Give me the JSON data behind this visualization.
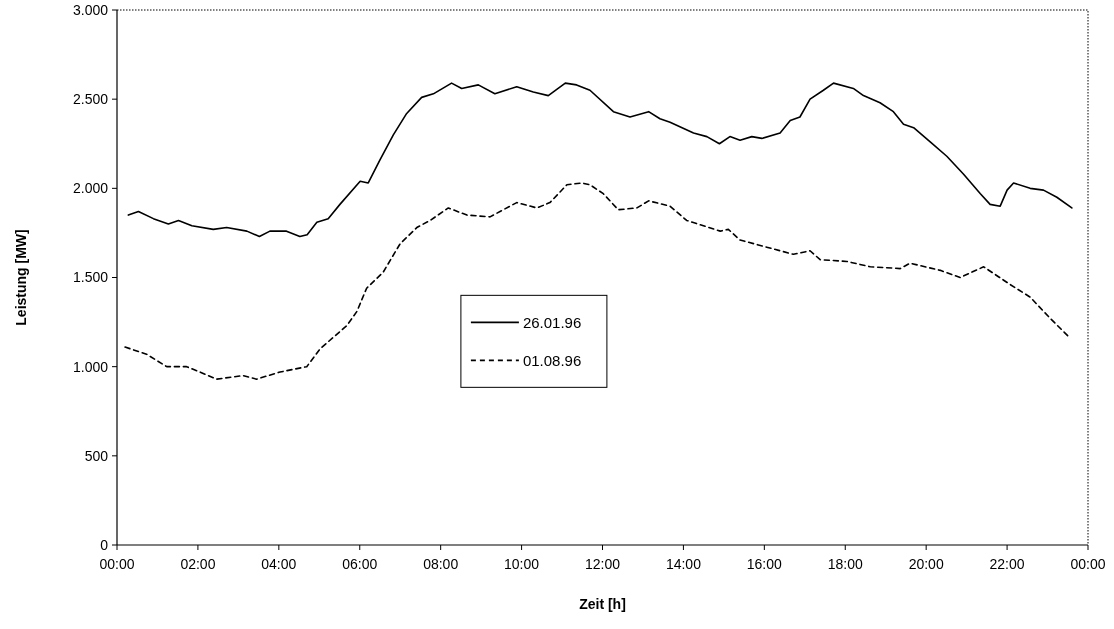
{
  "chart_data": {
    "type": "line",
    "xlabel": "Zeit [h]",
    "ylabel": "Leistung [MW]",
    "xlim": [
      0,
      24
    ],
    "xticks": [
      {
        "value": 0,
        "label": "00:00"
      },
      {
        "value": 2,
        "label": "02:00"
      },
      {
        "value": 4,
        "label": "04:00"
      },
      {
        "value": 6,
        "label": "06:00"
      },
      {
        "value": 8,
        "label": "08:00"
      },
      {
        "value": 10,
        "label": "10:00"
      },
      {
        "value": 12,
        "label": "12:00"
      },
      {
        "value": 14,
        "label": "14:00"
      },
      {
        "value": 16,
        "label": "16:00"
      },
      {
        "value": 18,
        "label": "18:00"
      },
      {
        "value": 20,
        "label": "20:00"
      },
      {
        "value": 22,
        "label": "22:00"
      },
      {
        "value": 24,
        "label": "00:00"
      }
    ],
    "ylim": [
      0,
      3000
    ],
    "yticks": [
      0,
      500,
      {
        "value": 1000,
        "label": "1.000"
      },
      {
        "value": 1500,
        "label": "1.500"
      },
      {
        "value": 2000,
        "label": "2.000"
      },
      {
        "value": 2500,
        "label": "2.500"
      },
      {
        "value": 3000,
        "label": "3.000"
      }
    ],
    "grid": false,
    "legend": "center left",
    "series": [
      {
        "name": "26.01.96",
        "color": "#000000",
        "line_style": "solid",
        "x": [
          0.28,
          0.53,
          0.9,
          1.27,
          1.52,
          1.85,
          2.38,
          2.71,
          3.21,
          3.52,
          3.78,
          4.19,
          4.52,
          4.7,
          4.94,
          5.22,
          5.51,
          6.01,
          6.21,
          6.5,
          6.83,
          7.16,
          7.53,
          7.82,
          8.27,
          8.52,
          8.93,
          9.34,
          9.88,
          10.29,
          10.66,
          11.08,
          11.36,
          11.69,
          12.27,
          12.68,
          13.14,
          13.42,
          13.67,
          14.25,
          14.58,
          14.89,
          15.15,
          15.4,
          15.69,
          15.94,
          16.39,
          16.64,
          16.88,
          17.13,
          17.46,
          17.71,
          18.2,
          18.45,
          18.86,
          19.19,
          19.44,
          19.69,
          20.1,
          20.51,
          20.92,
          21.34,
          21.58,
          21.83,
          22.0,
          22.16,
          22.57,
          22.9,
          23.23,
          23.6
        ],
        "values": [
          1850,
          1870,
          1830,
          1800,
          1820,
          1790,
          1770,
          1780,
          1760,
          1730,
          1760,
          1760,
          1730,
          1740,
          1810,
          1830,
          1910,
          2040,
          2030,
          2160,
          2300,
          2420,
          2510,
          2530,
          2590,
          2560,
          2580,
          2530,
          2570,
          2540,
          2520,
          2590,
          2580,
          2550,
          2430,
          2400,
          2430,
          2390,
          2370,
          2310,
          2290,
          2250,
          2290,
          2270,
          2290,
          2280,
          2310,
          2380,
          2400,
          2500,
          2550,
          2590,
          2560,
          2520,
          2480,
          2430,
          2360,
          2340,
          2260,
          2180,
          2080,
          1970,
          1910,
          1900,
          1990,
          2030,
          2000,
          1990,
          1950,
          1890
        ]
      },
      {
        "name": "01.08.96",
        "color": "#000000",
        "line_style": "dashed",
        "x": [
          0.2,
          0.73,
          1.23,
          1.72,
          2.05,
          2.46,
          3.12,
          3.45,
          4.03,
          4.69,
          5.02,
          5.68,
          5.93,
          6.17,
          6.58,
          7.0,
          7.41,
          7.74,
          8.19,
          8.65,
          9.22,
          9.88,
          10.38,
          10.7,
          11.12,
          11.49,
          11.69,
          12.02,
          12.39,
          12.85,
          13.14,
          13.67,
          14.08,
          14.91,
          15.11,
          15.4,
          16.06,
          16.72,
          17.13,
          17.38,
          18.04,
          18.62,
          19.36,
          19.6,
          20.35,
          20.84,
          21.42,
          22.08,
          22.57,
          23.07,
          23.56
        ],
        "values": [
          1110,
          1070,
          1000,
          1000,
          970,
          930,
          950,
          930,
          970,
          1000,
          1100,
          1230,
          1310,
          1440,
          1530,
          1690,
          1780,
          1820,
          1890,
          1850,
          1840,
          1920,
          1890,
          1920,
          2020,
          2030,
          2020,
          1970,
          1880,
          1890,
          1930,
          1900,
          1820,
          1760,
          1770,
          1710,
          1670,
          1630,
          1650,
          1600,
          1590,
          1560,
          1550,
          1580,
          1540,
          1500,
          1560,
          1460,
          1390,
          1270,
          1160
        ]
      }
    ]
  }
}
